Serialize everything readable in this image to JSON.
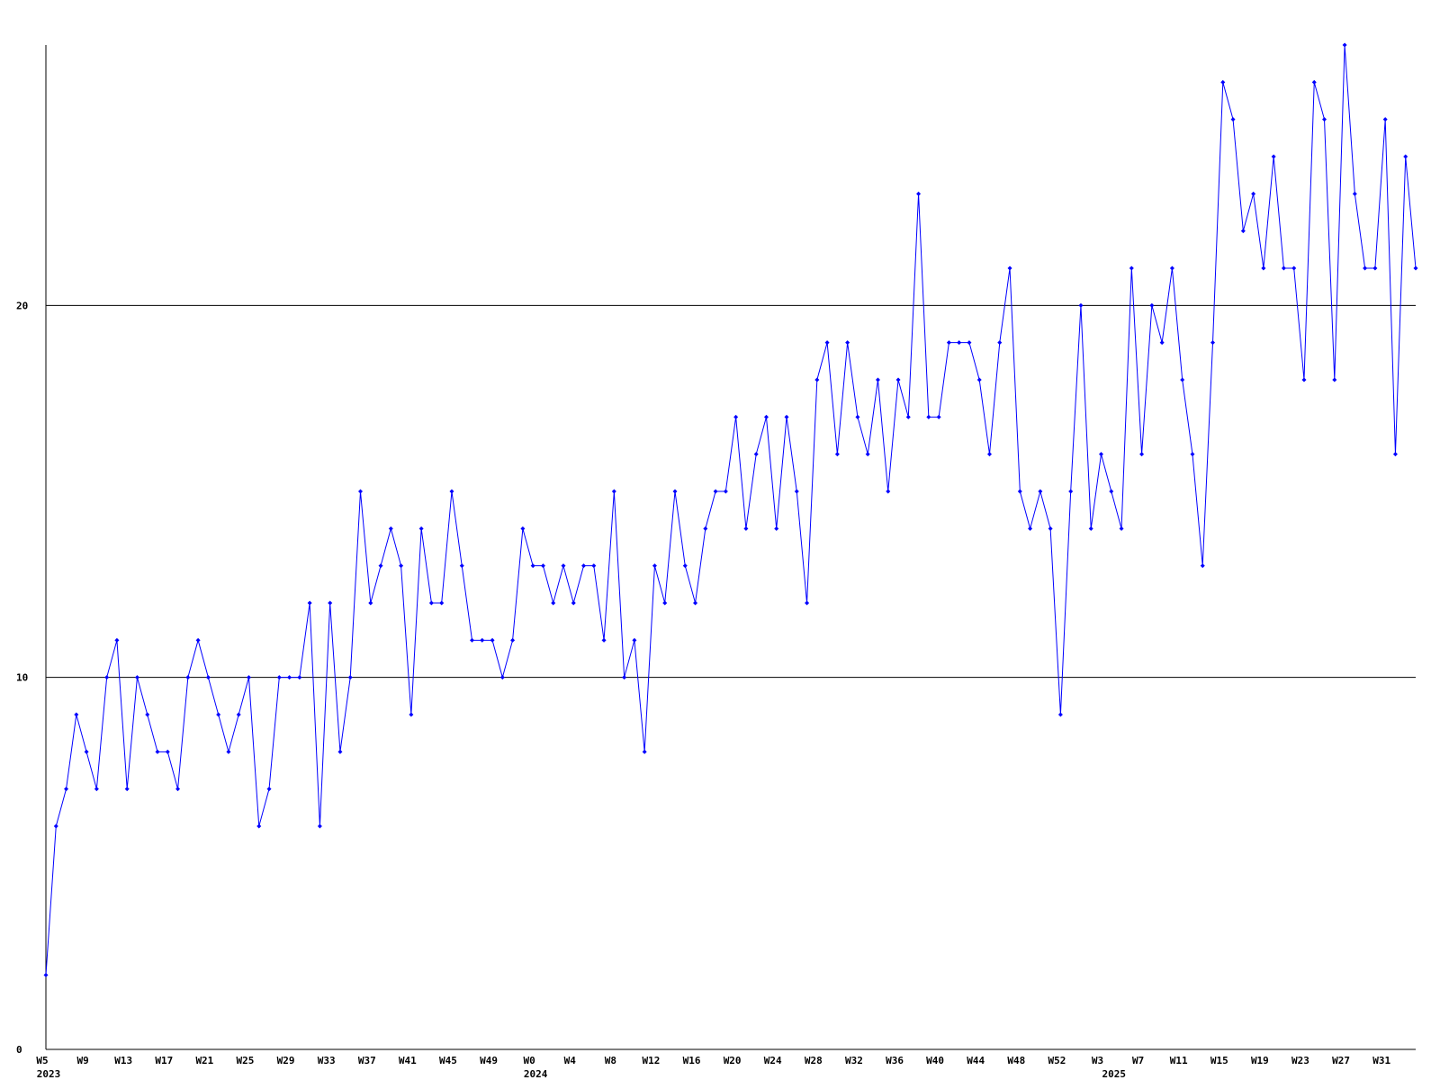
{
  "chart_data": {
    "type": "line",
    "categories": [
      "W5",
      null,
      null,
      null,
      "W9",
      null,
      null,
      null,
      "W13",
      null,
      null,
      null,
      "W17",
      null,
      null,
      null,
      "W21",
      null,
      null,
      null,
      "W25",
      null,
      null,
      null,
      "W29",
      null,
      null,
      null,
      "W33",
      null,
      null,
      null,
      "W37",
      null,
      null,
      null,
      "W41",
      null,
      null,
      null,
      "W45",
      null,
      null,
      null,
      "W49",
      null,
      null,
      null,
      "W0",
      null,
      null,
      null,
      "W4",
      null,
      null,
      null,
      "W8",
      null,
      null,
      null,
      "W12",
      null,
      null,
      null,
      "W16",
      null,
      null,
      null,
      "W20",
      null,
      null,
      null,
      "W24",
      null,
      null,
      null,
      "W28",
      null,
      null,
      null,
      "W32",
      null,
      null,
      null,
      "W36",
      null,
      null,
      null,
      "W40",
      null,
      null,
      null,
      "W44",
      null,
      null,
      null,
      "W48",
      null,
      null,
      null,
      "W52",
      null,
      null,
      null,
      "W3",
      null,
      null,
      null,
      "W7",
      null,
      null,
      null,
      "W11",
      null,
      null,
      null,
      "W15",
      null,
      null,
      null,
      "W19",
      null,
      null,
      null,
      "W23",
      null,
      null,
      null,
      "W27",
      null,
      null,
      null,
      "W31",
      null,
      null,
      null
    ],
    "years": [
      "2023",
      null,
      null,
      null,
      null,
      null,
      null,
      null,
      null,
      null,
      null,
      null,
      null,
      null,
      null,
      null,
      null,
      null,
      null,
      null,
      null,
      null,
      null,
      null,
      null,
      null,
      null,
      null,
      null,
      null,
      null,
      null,
      null,
      null,
      null,
      null,
      null,
      null,
      null,
      null,
      null,
      null,
      null,
      null,
      null,
      null,
      null,
      null,
      "2024",
      null,
      null,
      null,
      null,
      null,
      null,
      null,
      null,
      null,
      null,
      null,
      null,
      null,
      null,
      null,
      null,
      null,
      null,
      null,
      null,
      null,
      null,
      null,
      null,
      null,
      null,
      null,
      null,
      null,
      null,
      null,
      null,
      null,
      null,
      null,
      null,
      null,
      null,
      null,
      null,
      null,
      null,
      null,
      null,
      null,
      null,
      null,
      null,
      null,
      null,
      null,
      null,
      null,
      null,
      null,
      null,
      "2025",
      null,
      null,
      null,
      null,
      null,
      null,
      null,
      null,
      null,
      null,
      null,
      null,
      null,
      null,
      null,
      null,
      null,
      null,
      null,
      null,
      null,
      null,
      null,
      null,
      null,
      null,
      null,
      null,
      null,
      null,
      null,
      null,
      null,
      null
    ],
    "values": [
      2,
      6,
      7,
      9,
      8,
      7,
      10,
      11,
      7,
      10,
      9,
      8,
      8,
      7,
      10,
      11,
      10,
      9,
      8,
      9,
      10,
      6,
      7,
      10,
      10,
      10,
      12,
      6,
      12,
      8,
      10,
      15,
      12,
      13,
      14,
      13,
      9,
      14,
      12,
      12,
      15,
      13,
      11,
      11,
      11,
      10,
      11,
      14,
      13,
      13,
      12,
      13,
      12,
      13,
      13,
      11,
      15,
      10,
      11,
      8,
      13,
      12,
      15,
      13,
      12,
      14,
      15,
      15,
      17,
      14,
      16,
      17,
      14,
      17,
      15,
      12,
      18,
      19,
      16,
      19,
      17,
      16,
      18,
      15,
      18,
      17,
      23,
      17,
      17,
      19,
      19,
      19,
      18,
      16,
      19,
      21,
      15,
      14,
      15,
      14,
      9,
      15,
      20,
      14,
      16,
      15,
      14,
      21,
      16,
      20,
      19,
      21,
      18,
      16,
      13,
      19,
      26,
      25,
      22,
      23,
      21,
      24,
      21,
      21,
      18,
      26,
      25,
      18,
      27,
      23,
      21,
      21,
      25,
      16,
      24,
      21
    ],
    "color": "#0000ff",
    "ylim": [
      0,
      27
    ],
    "yticks": [
      0,
      10,
      20
    ],
    "grid": true
  }
}
